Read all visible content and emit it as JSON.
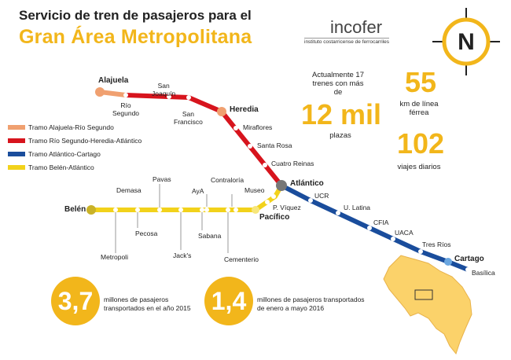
{
  "header": {
    "title_line1": "Servicio de tren de pasajeros para el",
    "title_line2": "Gran Área Metropolitana"
  },
  "logo": {
    "name": "incofer",
    "subtitle": "instituto costarricense de ferrocarriles"
  },
  "compass": {
    "label": "N",
    "accent": "#f2b61b"
  },
  "stats": {
    "trains_intro": "Actualmente 17 trenes con más de",
    "seats_value": "12 mil",
    "seats_unit": "plazas",
    "km_value": "55",
    "km_label": "km de línea férrea",
    "trips_value": "102",
    "trips_label": "viajes diarios"
  },
  "legend": [
    {
      "label": "Tramo Alajuela-Río Segundo",
      "color": "#f0a070"
    },
    {
      "label": "Tramo Río Segundo-Heredia-Atlántico",
      "color": "#d7141d"
    },
    {
      "label": "Tramo Atlántico-Cartago",
      "color": "#1a4d9c"
    },
    {
      "label": "Tramo Belén-Atlántico",
      "color": "#f2d21b"
    }
  ],
  "stations": {
    "alajuela": "Alajuela",
    "rio_segundo": "Río\nSegundo",
    "san_joaquin": "San\nJoaquín",
    "san_francisco": "San\nFrancisco",
    "heredia": "Heredia",
    "miraflores": "Miraflores",
    "santa_rosa": "Santa Rosa",
    "cuatro_reinas": "Cuatro Reinas",
    "atlantico": "Atlántico",
    "ucr": "UCR",
    "u_latina": "U. Latina",
    "cfia": "CFIA",
    "uaca": "UACA",
    "tres_rios": "Tres Ríos",
    "cartago": "Cartago",
    "basilica": "Basílica",
    "belen": "Belén",
    "demasa": "Demasa",
    "pavas": "Pavas",
    "aya": "AyA",
    "contraloria": "Contraloría",
    "museo": "Museo",
    "p_viquez": "P. Víquez",
    "pacifico": "Pacífico",
    "metropoli": "Metropoli",
    "pecosa": "Pecosa",
    "jacks": "Jack's",
    "sabana": "Sabana",
    "cementerio": "Cementerio"
  },
  "passengers": [
    {
      "value": "3,7",
      "text_line1": "millones de pasajeros",
      "text_line2": "transportados en el año 2015"
    },
    {
      "value": "1,4",
      "text_line1": "millones de pasajeros transportados",
      "text_line2": "de enero a mayo 2016"
    }
  ],
  "colors": {
    "accent": "#f2b61b",
    "red_line": "#d7141d",
    "blue_line": "#1a4d9c",
    "yellow_line": "#f2d21b",
    "orange_line": "#f0a070",
    "map_fill": "#fbd26a"
  }
}
